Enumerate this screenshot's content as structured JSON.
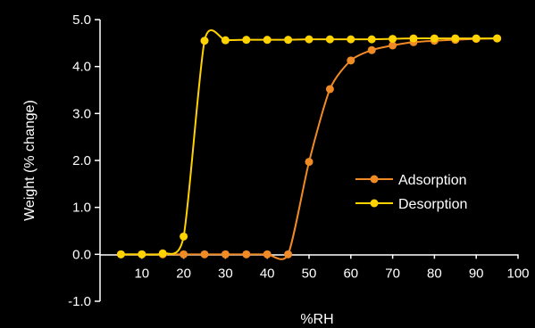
{
  "colors": {
    "background": "#000000",
    "axis": "#ffffff",
    "adsorption": "#f08a24",
    "desorption": "#ffd200"
  },
  "chart_data": {
    "type": "line",
    "xlabel": "%RH",
    "ylabel": "Weight (% change)",
    "xlim": [
      0,
      100
    ],
    "ylim": [
      -1.0,
      5.0
    ],
    "x_ticks": [
      10,
      20,
      30,
      40,
      50,
      60,
      70,
      80,
      90,
      100
    ],
    "x_tick_labels": [
      "10",
      "20",
      "30",
      "40",
      "50",
      "60",
      "70",
      "80",
      "90",
      "100"
    ],
    "y_ticks": [
      -1.0,
      0.0,
      1.0,
      2.0,
      3.0,
      4.0,
      5.0
    ],
    "y_tick_labels": [
      "-1.0",
      "0.0",
      "1.0",
      "2.0",
      "3.0",
      "4.0",
      "5.0"
    ],
    "grid": false,
    "legend_position": "center-right",
    "series": [
      {
        "name": "Adsorption",
        "color": "#f08a24",
        "x": [
          5,
          10,
          15,
          20,
          25,
          30,
          35,
          40,
          45,
          50,
          55,
          60,
          65,
          70,
          75,
          80,
          85,
          90,
          95
        ],
        "y": [
          0.0,
          0.0,
          0.0,
          0.0,
          0.0,
          0.0,
          0.0,
          0.0,
          0.0,
          1.97,
          3.52,
          4.13,
          4.35,
          4.45,
          4.52,
          4.55,
          4.57,
          4.59,
          4.6
        ]
      },
      {
        "name": "Desorption",
        "color": "#ffd200",
        "x": [
          5,
          10,
          15,
          20,
          25,
          30,
          35,
          40,
          45,
          50,
          55,
          60,
          65,
          70,
          75,
          80,
          85,
          90,
          95
        ],
        "y": [
          0.0,
          0.0,
          0.02,
          0.38,
          4.55,
          4.56,
          4.57,
          4.57,
          4.57,
          4.58,
          4.58,
          4.58,
          4.58,
          4.59,
          4.6,
          4.6,
          4.6,
          4.6,
          4.6
        ]
      }
    ]
  }
}
